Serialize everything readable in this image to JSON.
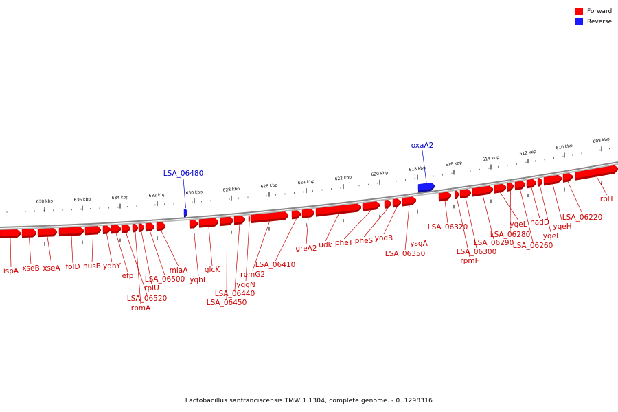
{
  "legend": [
    {
      "label": "Forward",
      "color": "#ff0000"
    },
    {
      "label": "Reverse",
      "color": "#1a1aff"
    }
  ],
  "footer": "Lactobacillus sanfranciscensis TMW 1.1304, complete genome. - 0..1298316",
  "colors": {
    "forward": "#ff0000",
    "reverse": "#1a1aff",
    "forward_label": "#cc0000",
    "reverse_label": "#0000cc",
    "backbone": "#888888"
  },
  "ticks": [
    "638 kbp",
    "636 kbp",
    "634 kbp",
    "632 kbp",
    "630 kbp",
    "628 kbp",
    "626 kbp",
    "624 kbp",
    "622 kbp",
    "620 kbp",
    "618 kbp",
    "616 kbp",
    "614 kbp",
    "612 kbp",
    "610 kbp",
    "608 kbp"
  ],
  "genes": [
    {
      "name": "ispA",
      "strand": "forward"
    },
    {
      "name": "xseB",
      "strand": "forward"
    },
    {
      "name": "xseA",
      "strand": "forward"
    },
    {
      "name": "folD",
      "strand": "forward"
    },
    {
      "name": "nusB",
      "strand": "forward"
    },
    {
      "name": "yqhY",
      "strand": "forward"
    },
    {
      "name": "efp",
      "strand": "forward"
    },
    {
      "name": "LSA_06520",
      "strand": "forward"
    },
    {
      "name": "rpmA",
      "strand": "forward"
    },
    {
      "name": "rplU",
      "strand": "forward"
    },
    {
      "name": "LSA_06500",
      "strand": "forward"
    },
    {
      "name": "miaA",
      "strand": "forward"
    },
    {
      "name": "LSA_06480",
      "strand": "reverse"
    },
    {
      "name": "yqhL",
      "strand": "forward"
    },
    {
      "name": "glcK",
      "strand": "forward"
    },
    {
      "name": "LSA_06450",
      "strand": "forward"
    },
    {
      "name": "LSA_06440",
      "strand": "forward"
    },
    {
      "name": "yqgN",
      "strand": "forward"
    },
    {
      "name": "rpmG2",
      "strand": "forward"
    },
    {
      "name": "LSA_06410",
      "strand": "forward"
    },
    {
      "name": "greA2",
      "strand": "forward"
    },
    {
      "name": "udk",
      "strand": "forward"
    },
    {
      "name": "pheT",
      "strand": "forward"
    },
    {
      "name": "pheS",
      "strand": "forward"
    },
    {
      "name": "yodB",
      "strand": "forward"
    },
    {
      "name": "LSA_06350",
      "strand": "forward"
    },
    {
      "name": "ysgA",
      "strand": "forward"
    },
    {
      "name": "oxaA2",
      "strand": "reverse"
    },
    {
      "name": "LSA_06320",
      "strand": "forward"
    },
    {
      "name": "rpmF",
      "strand": "forward"
    },
    {
      "name": "LSA_06300",
      "strand": "forward"
    },
    {
      "name": "LSA_06290",
      "strand": "forward"
    },
    {
      "name": "yqeL",
      "strand": "forward"
    },
    {
      "name": "LSA_06280",
      "strand": "forward"
    },
    {
      "name": "LSA_06260",
      "strand": "forward"
    },
    {
      "name": "nadD",
      "strand": "forward"
    },
    {
      "name": "yqeI",
      "strand": "forward"
    },
    {
      "name": "yqeH",
      "strand": "forward"
    },
    {
      "name": "LSA_06220",
      "strand": "forward"
    },
    {
      "name": "rplT",
      "strand": "forward"
    }
  ]
}
